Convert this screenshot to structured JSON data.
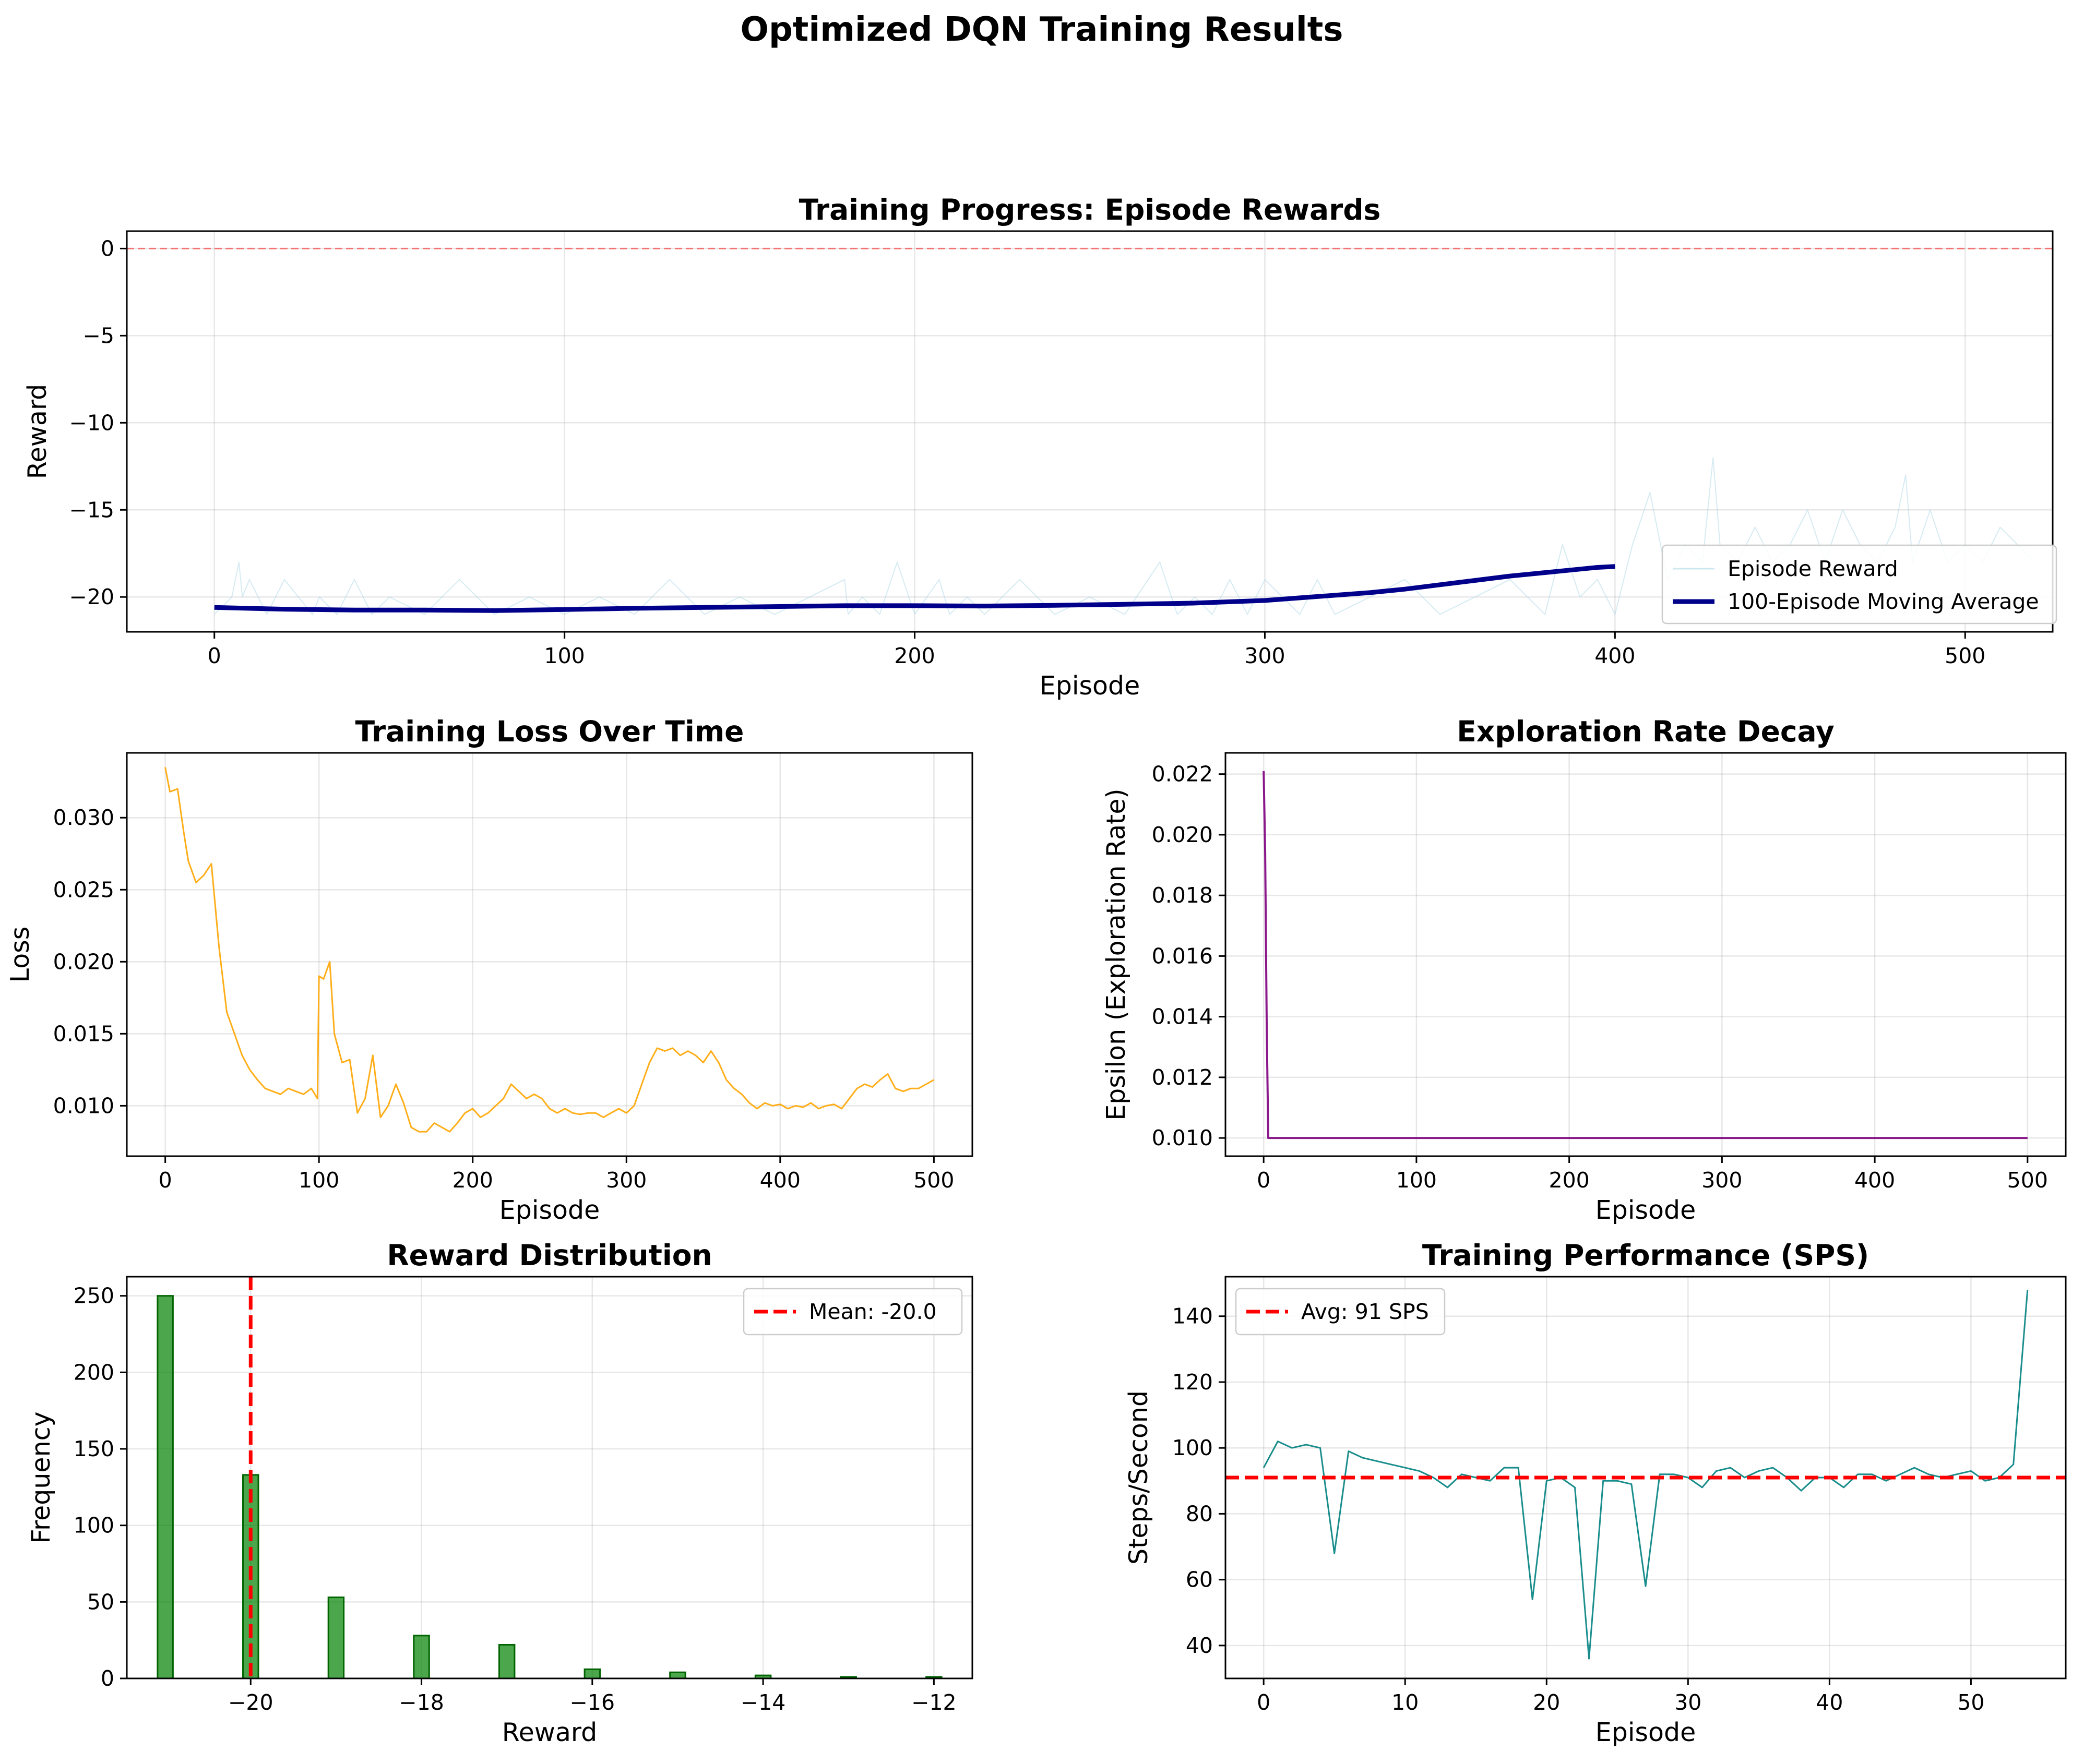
{
  "figure": {
    "title": "Optimized DQN Training Results"
  },
  "chart_data": [
    {
      "id": "rewards",
      "type": "line",
      "title": "Training Progress: Episode Rewards",
      "xlabel": "Episode",
      "ylabel": "Reward",
      "xlim": [
        -25,
        525
      ],
      "ylim": [
        -22,
        1
      ],
      "xticks": [
        0,
        100,
        200,
        300,
        400,
        500
      ],
      "yticks": [
        0,
        -5,
        -10,
        -15,
        -20
      ],
      "grid": true,
      "legend": "lower-right",
      "hline": {
        "y": 0,
        "color": "#ff0000",
        "style": "dashed"
      },
      "series": [
        {
          "name": "Episode Reward",
          "color": "#add8e6",
          "note_points_sampled": true,
          "x": [
            0,
            5,
            7,
            8,
            10,
            15,
            20,
            28,
            30,
            35,
            40,
            45,
            50,
            60,
            70,
            80,
            90,
            100,
            110,
            120,
            130,
            140,
            150,
            160,
            170,
            180,
            181,
            185,
            190,
            195,
            200,
            207,
            210,
            215,
            220,
            225,
            230,
            240,
            250,
            260,
            270,
            275,
            280,
            285,
            290,
            295,
            300,
            305,
            310,
            315,
            320,
            330,
            340,
            350,
            360,
            370,
            380,
            385,
            390,
            395,
            400,
            405,
            410,
            415,
            420,
            425,
            428,
            430,
            435,
            440,
            445,
            450,
            455,
            460,
            465,
            470,
            475,
            480,
            483,
            485,
            490,
            495,
            500,
            505,
            510,
            515,
            520
          ],
          "y": [
            -21,
            -20,
            -18,
            -20,
            -19,
            -21,
            -19,
            -21,
            -20,
            -21,
            -19,
            -21,
            -20,
            -21,
            -19,
            -21,
            -20,
            -21,
            -20,
            -21,
            -19,
            -21,
            -20,
            -21,
            -20,
            -19,
            -21,
            -20,
            -21,
            -18,
            -21,
            -19,
            -21,
            -20,
            -21,
            -20,
            -19,
            -21,
            -20,
            -21,
            -18,
            -21,
            -20,
            -21,
            -19,
            -21,
            -19,
            -20,
            -21,
            -19,
            -21,
            -20,
            -19,
            -21,
            -20,
            -19,
            -21,
            -17,
            -20,
            -19,
            -21,
            -17,
            -14,
            -19,
            -17,
            -18,
            -12,
            -17,
            -18,
            -16,
            -18,
            -17,
            -15,
            -18,
            -15,
            -17,
            -18,
            -16,
            -13,
            -18,
            -15,
            -18,
            -17,
            -18,
            -16,
            -17,
            -18
          ]
        },
        {
          "name": "100-Episode Moving Average",
          "color": "#00008b",
          "x": [
            0,
            20,
            40,
            60,
            80,
            100,
            120,
            140,
            160,
            180,
            200,
            220,
            240,
            260,
            280,
            300,
            310,
            320,
            330,
            340,
            350,
            360,
            370,
            380,
            390,
            395,
            400
          ],
          "y": [
            -20.6,
            -20.7,
            -20.75,
            -20.75,
            -20.78,
            -20.72,
            -20.65,
            -20.6,
            -20.55,
            -20.5,
            -20.5,
            -20.52,
            -20.48,
            -20.42,
            -20.35,
            -20.2,
            -20.05,
            -19.9,
            -19.75,
            -19.55,
            -19.3,
            -19.05,
            -18.8,
            -18.6,
            -18.4,
            -18.3,
            -18.25
          ]
        }
      ]
    },
    {
      "id": "loss",
      "type": "line",
      "title": "Training Loss Over Time",
      "xlabel": "Episode",
      "ylabel": "Loss",
      "xlim": [
        -25,
        525
      ],
      "ylim": [
        0.0065,
        0.0345
      ],
      "xticks": [
        0,
        100,
        200,
        300,
        400,
        500
      ],
      "yticks": [
        0.01,
        0.015,
        0.02,
        0.025,
        0.03
      ],
      "grid": true,
      "series": [
        {
          "name": "",
          "color": "#ffa500",
          "x": [
            0,
            3,
            8,
            12,
            15,
            20,
            25,
            30,
            35,
            40,
            45,
            50,
            55,
            60,
            65,
            70,
            75,
            80,
            85,
            90,
            95,
            99,
            100,
            103,
            107,
            110,
            115,
            120,
            125,
            130,
            135,
            140,
            145,
            150,
            155,
            160,
            165,
            170,
            175,
            180,
            185,
            190,
            195,
            200,
            205,
            210,
            215,
            220,
            225,
            230,
            235,
            240,
            245,
            250,
            255,
            260,
            265,
            270,
            275,
            280,
            285,
            290,
            295,
            300,
            305,
            310,
            315,
            320,
            325,
            330,
            335,
            340,
            345,
            350,
            355,
            360,
            365,
            370,
            375,
            380,
            385,
            390,
            395,
            400,
            405,
            410,
            415,
            420,
            425,
            430,
            435,
            440,
            445,
            450,
            455,
            460,
            465,
            470,
            475,
            480,
            485,
            490,
            495,
            500
          ],
          "y": [
            0.0335,
            0.0318,
            0.032,
            0.029,
            0.027,
            0.0255,
            0.026,
            0.0268,
            0.021,
            0.0165,
            0.015,
            0.0135,
            0.0125,
            0.0118,
            0.0112,
            0.011,
            0.0108,
            0.0112,
            0.011,
            0.0108,
            0.0112,
            0.0105,
            0.019,
            0.0188,
            0.02,
            0.015,
            0.013,
            0.0132,
            0.0095,
            0.0105,
            0.0135,
            0.0092,
            0.01,
            0.0115,
            0.0102,
            0.0085,
            0.0082,
            0.0082,
            0.0088,
            0.0085,
            0.0082,
            0.0088,
            0.0095,
            0.0098,
            0.0092,
            0.0095,
            0.01,
            0.0105,
            0.0115,
            0.011,
            0.0105,
            0.0108,
            0.0105,
            0.0098,
            0.0095,
            0.0098,
            0.0095,
            0.0094,
            0.0095,
            0.0095,
            0.0092,
            0.0095,
            0.0098,
            0.0095,
            0.01,
            0.0115,
            0.013,
            0.014,
            0.0138,
            0.014,
            0.0135,
            0.0138,
            0.0135,
            0.013,
            0.0138,
            0.013,
            0.0118,
            0.0112,
            0.0108,
            0.0102,
            0.0098,
            0.0102,
            0.01,
            0.0101,
            0.0098,
            0.01,
            0.0099,
            0.0102,
            0.0098,
            0.01,
            0.0101,
            0.0098,
            0.0105,
            0.0112,
            0.0115,
            0.0113,
            0.0118,
            0.0122,
            0.0112,
            0.011,
            0.0112,
            0.0112,
            0.0115,
            0.0118
          ]
        }
      ]
    },
    {
      "id": "epsilon",
      "type": "line",
      "title": "Exploration Rate Decay",
      "xlabel": "Episode",
      "ylabel": "Epsilon (Exploration Rate)",
      "xlim": [
        -25,
        525
      ],
      "ylim": [
        0.0094,
        0.0227
      ],
      "xticks": [
        0,
        100,
        200,
        300,
        400,
        500
      ],
      "yticks": [
        0.01,
        0.012,
        0.014,
        0.016,
        0.018,
        0.02,
        0.022
      ],
      "grid": true,
      "series": [
        {
          "name": "",
          "color": "#800080",
          "x": [
            0,
            1,
            2,
            3,
            500
          ],
          "y": [
            0.0221,
            0.0194,
            0.0138,
            0.01,
            0.01
          ]
        }
      ]
    },
    {
      "id": "distribution",
      "type": "bar",
      "title": "Reward Distribution",
      "xlabel": "Reward",
      "ylabel": "Frequency",
      "xlim": [
        -21.45,
        -11.55
      ],
      "ylim": [
        0,
        262.5
      ],
      "xticks": [
        -20,
        -18,
        -16,
        -14,
        -12
      ],
      "yticks": [
        0,
        50,
        100,
        150,
        200,
        250
      ],
      "grid": true,
      "legend": "upper-right",
      "bar_color": "#008000",
      "categories": [
        -21,
        -20,
        -19,
        -18,
        -17,
        -16,
        -15,
        -14,
        -13,
        -12
      ],
      "values": [
        250,
        133,
        53,
        28,
        22,
        6,
        4,
        2,
        1,
        1
      ],
      "mean_line": {
        "x": -20.0,
        "label": "Mean: -20.0",
        "color": "#ff0000"
      }
    },
    {
      "id": "sps",
      "type": "line",
      "title": "Training Performance (SPS)",
      "xlabel": "Episode",
      "ylabel": "Steps/Second",
      "xlim": [
        -2.7,
        56.7
      ],
      "ylim": [
        30,
        152
      ],
      "xticks": [
        0,
        10,
        20,
        30,
        40,
        50
      ],
      "yticks": [
        40,
        60,
        80,
        100,
        120,
        140
      ],
      "grid": true,
      "legend": "upper-left",
      "avg_line": {
        "y": 91,
        "label": "Avg: 91 SPS",
        "color": "#ff0000"
      },
      "series": [
        {
          "name": "",
          "color": "#008080",
          "x": [
            0,
            1,
            2,
            3,
            4,
            5,
            6,
            7,
            8,
            9,
            10,
            11,
            12,
            13,
            14,
            15,
            16,
            17,
            18,
            19,
            20,
            21,
            22,
            23,
            24,
            25,
            26,
            27,
            28,
            29,
            30,
            31,
            32,
            33,
            34,
            35,
            36,
            37,
            38,
            39,
            40,
            41,
            42,
            43,
            44,
            45,
            46,
            47,
            48,
            49,
            50,
            51,
            52,
            53,
            54
          ],
          "y": [
            94,
            102,
            100,
            101,
            100,
            68,
            99,
            97,
            96,
            95,
            94,
            93,
            91,
            88,
            92,
            91,
            90,
            94,
            94,
            54,
            90,
            91,
            88,
            36,
            90,
            90,
            89,
            58,
            92,
            92,
            91,
            88,
            93,
            94,
            91,
            93,
            94,
            91,
            87,
            91,
            91,
            88,
            92,
            92,
            90,
            92,
            94,
            92,
            91,
            92,
            93,
            90,
            91,
            95,
            148
          ]
        }
      ]
    }
  ]
}
